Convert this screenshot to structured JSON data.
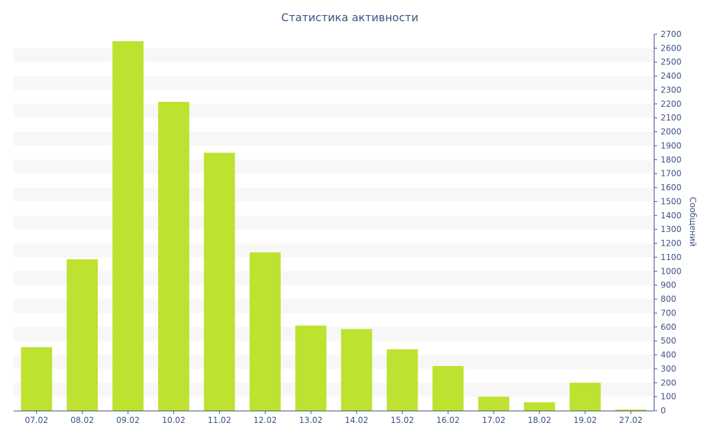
{
  "chart_data": {
    "type": "bar",
    "title": "Статистика активности",
    "ylabel": "Сообщений",
    "xlabel": "",
    "categories": [
      "07.02",
      "08.02",
      "09.02",
      "10.02",
      "11.02",
      "12.02",
      "13.02",
      "14.02",
      "15.02",
      "16.02",
      "17.02",
      "18.02",
      "19.02",
      "27.02"
    ],
    "values": [
      455,
      1085,
      2650,
      2215,
      1850,
      1135,
      610,
      585,
      440,
      320,
      100,
      60,
      200,
      8
    ],
    "ylim": [
      0,
      2700
    ],
    "ytick_step": 100,
    "y_axis_side": "right",
    "grid": "alternating horizontal bands",
    "legend": "none",
    "bar_color": "#bde22f",
    "text_color": "#3e5185",
    "band_color": "#f7f7f7"
  }
}
